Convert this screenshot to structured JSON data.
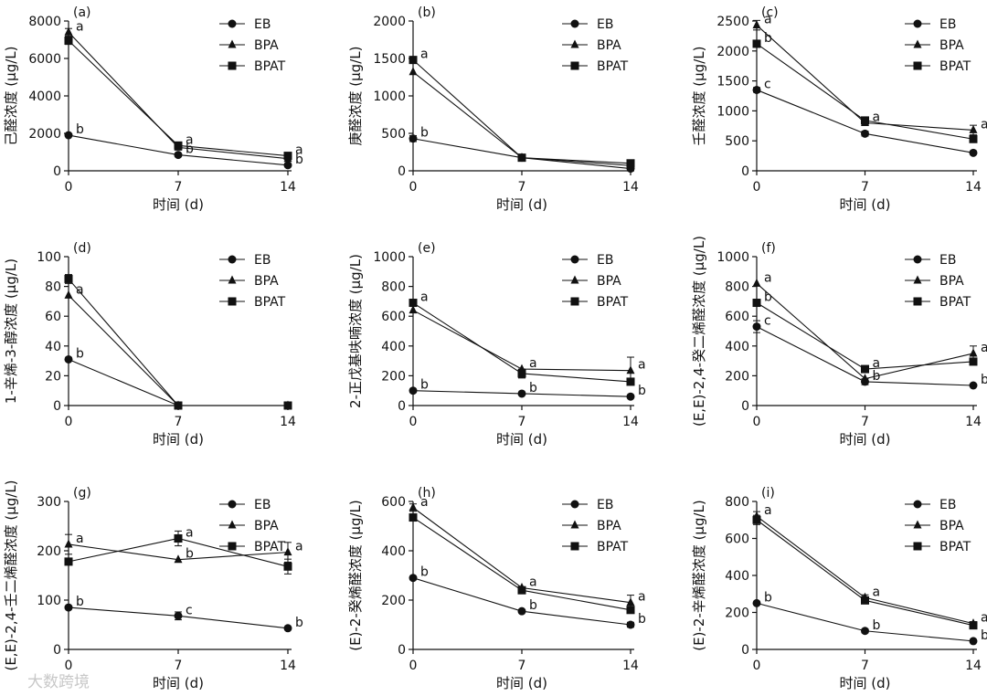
{
  "figure": {
    "x_axis_label": "时间 (d)",
    "unit": "(μg/L)",
    "watermark": "大数跨境"
  },
  "legend": [
    {
      "name": "EB",
      "marker": "circle"
    },
    {
      "name": "BPA",
      "marker": "triangle"
    },
    {
      "name": "BPAT",
      "marker": "square"
    }
  ],
  "chart_data": [
    {
      "type": "line",
      "panel": "(a)",
      "ylabel": "己醛浓度",
      "x": [
        0,
        7,
        14
      ],
      "ylim": [
        0,
        8000
      ],
      "yticks": [
        0,
        2000,
        4000,
        6000,
        8000
      ],
      "series": [
        {
          "name": "EB",
          "values": [
            1900,
            850,
            300
          ],
          "errors": [
            0,
            0,
            0
          ],
          "letters": [
            "b",
            "b",
            "b"
          ]
        },
        {
          "name": "BPA",
          "values": [
            7400,
            1250,
            650
          ],
          "errors": [
            200,
            0,
            0
          ],
          "letters": [
            "a",
            "",
            ""
          ]
        },
        {
          "name": "BPAT",
          "values": [
            6950,
            1350,
            800
          ],
          "errors": [
            200,
            0,
            0
          ],
          "letters": [
            "",
            "a",
            "a"
          ]
        }
      ]
    },
    {
      "type": "line",
      "panel": "(b)",
      "ylabel": "庚醛浓度",
      "x": [
        0,
        7,
        14
      ],
      "ylim": [
        0,
        2000
      ],
      "yticks": [
        0,
        500,
        1000,
        1500,
        2000
      ],
      "series": [
        {
          "name": "EB",
          "values": [
            430,
            175,
            30
          ],
          "errors": [
            40,
            0,
            0
          ],
          "letters": [
            "b",
            "",
            ""
          ]
        },
        {
          "name": "BPA",
          "values": [
            1320,
            175,
            70
          ],
          "errors": [
            0,
            0,
            0
          ],
          "letters": [
            "",
            "",
            ""
          ]
        },
        {
          "name": "BPAT",
          "values": [
            1480,
            175,
            100
          ],
          "errors": [
            0,
            0,
            0
          ],
          "letters": [
            "a",
            "",
            ""
          ]
        }
      ]
    },
    {
      "type": "line",
      "panel": "(c)",
      "ylabel": "壬醛浓度",
      "x": [
        0,
        7,
        14
      ],
      "ylim": [
        0,
        2500
      ],
      "yticks": [
        0,
        500,
        1000,
        1500,
        2000,
        2500
      ],
      "series": [
        {
          "name": "EB",
          "values": [
            1350,
            620,
            300
          ],
          "errors": [
            40,
            40,
            0
          ],
          "letters": [
            "c",
            "",
            ""
          ]
        },
        {
          "name": "BPA",
          "values": [
            2430,
            800,
            680
          ],
          "errors": [
            80,
            0,
            80
          ],
          "letters": [
            "a",
            "a",
            "a"
          ]
        },
        {
          "name": "BPAT",
          "values": [
            2120,
            840,
            530
          ],
          "errors": [
            0,
            30,
            0
          ],
          "letters": [
            "b",
            "",
            ""
          ]
        }
      ]
    },
    {
      "type": "line",
      "panel": "(d)",
      "ylabel": "1-辛烯-3-醇浓度",
      "x": [
        0,
        7,
        14
      ],
      "ylim": [
        0,
        100
      ],
      "yticks": [
        0,
        20,
        40,
        60,
        80,
        100
      ],
      "series": [
        {
          "name": "EB",
          "values": [
            31,
            0,
            0
          ],
          "errors": [
            1,
            0,
            0
          ],
          "letters": [
            "b",
            "",
            ""
          ]
        },
        {
          "name": "BPA",
          "values": [
            74,
            0,
            0
          ],
          "errors": [
            0,
            0,
            0
          ],
          "letters": [
            "a",
            "",
            ""
          ]
        },
        {
          "name": "BPAT",
          "values": [
            85,
            0,
            0
          ],
          "errors": [
            3,
            0,
            0
          ],
          "letters": [
            "",
            "",
            ""
          ]
        }
      ]
    },
    {
      "type": "line",
      "panel": "(e)",
      "ylabel": "2-正戊基呋喃浓度",
      "x": [
        0,
        7,
        14
      ],
      "ylim": [
        0,
        1000
      ],
      "yticks": [
        0,
        200,
        400,
        600,
        800,
        1000
      ],
      "series": [
        {
          "name": "EB",
          "values": [
            100,
            80,
            60
          ],
          "errors": [
            0,
            0,
            0
          ],
          "letters": [
            "b",
            "b",
            "b"
          ]
        },
        {
          "name": "BPA",
          "values": [
            640,
            245,
            235
          ],
          "errors": [
            0,
            0,
            90
          ],
          "letters": [
            "",
            "a",
            "a"
          ]
        },
        {
          "name": "BPAT",
          "values": [
            690,
            215,
            160
          ],
          "errors": [
            0,
            30,
            0
          ],
          "letters": [
            "a",
            "",
            ""
          ]
        }
      ]
    },
    {
      "type": "line",
      "panel": "(f)",
      "ylabel": "(E,E)-2,4-癸二烯醛浓度",
      "x": [
        0,
        7,
        14
      ],
      "ylim": [
        0,
        1000
      ],
      "yticks": [
        0,
        200,
        400,
        600,
        800,
        1000
      ],
      "series": [
        {
          "name": "EB",
          "values": [
            530,
            160,
            135
          ],
          "errors": [
            40,
            20,
            0
          ],
          "letters": [
            "c",
            "b",
            "b"
          ]
        },
        {
          "name": "BPA",
          "values": [
            820,
            180,
            350
          ],
          "errors": [
            0,
            0,
            50
          ],
          "letters": [
            "a",
            "",
            "a"
          ]
        },
        {
          "name": "BPAT",
          "values": [
            690,
            245,
            295
          ],
          "errors": [
            0,
            0,
            0
          ],
          "letters": [
            "b",
            "a",
            ""
          ]
        }
      ]
    },
    {
      "type": "line",
      "panel": "(g)",
      "ylabel": "(E,E)-2,4-壬二烯醛浓度",
      "x": [
        0,
        7,
        14
      ],
      "ylim": [
        0,
        300
      ],
      "yticks": [
        0,
        100,
        200,
        300
      ],
      "series": [
        {
          "name": "EB",
          "values": [
            85,
            68,
            43
          ],
          "errors": [
            0,
            8,
            0
          ],
          "letters": [
            "b",
            "c",
            "b"
          ]
        },
        {
          "name": "BPA",
          "values": [
            213,
            182,
            197
          ],
          "errors": [
            20,
            0,
            20
          ],
          "letters": [
            "a",
            "b",
            "a"
          ]
        },
        {
          "name": "BPAT",
          "values": [
            178,
            225,
            168
          ],
          "errors": [
            0,
            15,
            15
          ],
          "letters": [
            "",
            "a",
            ""
          ]
        }
      ]
    },
    {
      "type": "line",
      "panel": "(h)",
      "ylabel": "(E)-2-癸烯醛浓度",
      "x": [
        0,
        7,
        14
      ],
      "ylim": [
        0,
        600
      ],
      "yticks": [
        0,
        200,
        400,
        600
      ],
      "series": [
        {
          "name": "EB",
          "values": [
            290,
            155,
            100
          ],
          "errors": [
            0,
            0,
            10
          ],
          "letters": [
            "b",
            "b",
            "b"
          ]
        },
        {
          "name": "BPA",
          "values": [
            575,
            250,
            190
          ],
          "errors": [
            15,
            0,
            30
          ],
          "letters": [
            "a",
            "a",
            "a"
          ]
        },
        {
          "name": "BPAT",
          "values": [
            535,
            240,
            160
          ],
          "errors": [
            0,
            0,
            0
          ],
          "letters": [
            "",
            "",
            ""
          ]
        }
      ]
    },
    {
      "type": "line",
      "panel": "(i)",
      "ylabel": "(E)-2-辛烯醛浓度",
      "x": [
        0,
        7,
        14
      ],
      "ylim": [
        0,
        800
      ],
      "yticks": [
        0,
        200,
        400,
        600,
        800
      ],
      "series": [
        {
          "name": "EB",
          "values": [
            250,
            100,
            45
          ],
          "errors": [
            0,
            10,
            0
          ],
          "letters": [
            "b",
            "b",
            "b"
          ]
        },
        {
          "name": "BPA",
          "values": [
            720,
            280,
            140
          ],
          "errors": [
            25,
            15,
            10
          ],
          "letters": [
            "a",
            "a",
            "a"
          ]
        },
        {
          "name": "BPAT",
          "values": [
            700,
            265,
            130
          ],
          "errors": [
            25,
            15,
            10
          ],
          "letters": [
            "",
            "",
            ""
          ]
        }
      ]
    }
  ]
}
